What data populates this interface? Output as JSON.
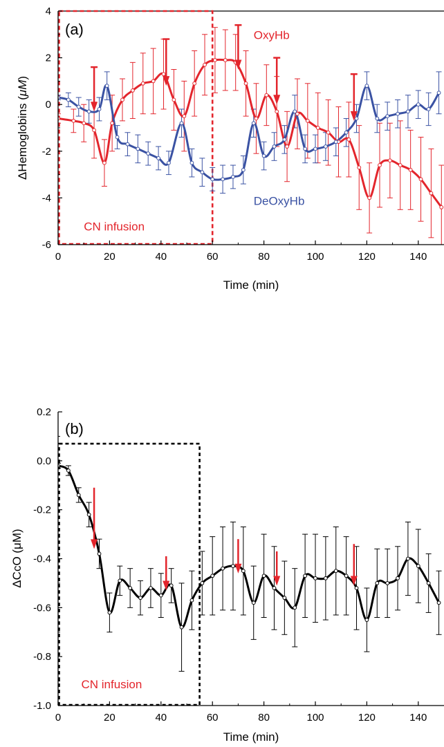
{
  "colors": {
    "oxy": "#e3252c",
    "deoxy": "#3a52a3",
    "cco": "#000000",
    "arrow": "#e3252c",
    "box_a": "#e3252c",
    "box_b": "#000000"
  },
  "chart_data": [
    {
      "type": "line",
      "panel_label": "(a)",
      "xlabel": "Time (min)",
      "ylabel_prefix": "ΔHemoglobins (",
      "ylabel_unit": "μM",
      "ylabel_suffix": ")",
      "xlim": [
        0,
        150
      ],
      "ylim": [
        -6,
        4
      ],
      "xticks": [
        "0",
        "20",
        "40",
        "60",
        "80",
        "100",
        "120",
        "140"
      ],
      "xtick_values": [
        0,
        20,
        40,
        60,
        80,
        100,
        120,
        140
      ],
      "yticks": [
        "-6",
        "-4",
        "-2",
        "0",
        "2",
        "4"
      ],
      "ytick_values": [
        -6,
        -4,
        -2,
        0,
        2,
        4
      ],
      "box_label": "CN infusion",
      "box_x": [
        0,
        60
      ],
      "box_y": [
        -6,
        4
      ],
      "series": [
        {
          "name": "OxyHb",
          "color_key": "oxy",
          "label_at": [
            76,
            2.8
          ],
          "points": [
            {
              "x": 0,
              "y": -0.6,
              "e": 0.2
            },
            {
              "x": 6,
              "y": -0.7,
              "e": 0.5
            },
            {
              "x": 10,
              "y": -0.8,
              "e": 0.8
            },
            {
              "x": 14,
              "y": -1.1,
              "e": 1.2
            },
            {
              "x": 18,
              "y": -2.5,
              "e": 1.0
            },
            {
              "x": 21,
              "y": -0.8,
              "e": 1.2
            },
            {
              "x": 25,
              "y": 0.2,
              "e": 0.9
            },
            {
              "x": 29,
              "y": 0.6,
              "e": 1.2
            },
            {
              "x": 33,
              "y": 0.9,
              "e": 1.3
            },
            {
              "x": 37,
              "y": 1.0,
              "e": 1.4
            },
            {
              "x": 41,
              "y": 1.3,
              "e": 1.5
            },
            {
              "x": 45,
              "y": 0.2,
              "e": 1.3
            },
            {
              "x": 49,
              "y": -0.5,
              "e": 1.5
            },
            {
              "x": 53,
              "y": 0.9,
              "e": 1.4
            },
            {
              "x": 57,
              "y": 1.7,
              "e": 1.3
            },
            {
              "x": 61,
              "y": 1.9,
              "e": 1.4
            },
            {
              "x": 65,
              "y": 1.9,
              "e": 1.3
            },
            {
              "x": 69,
              "y": 1.8,
              "e": 1.2
            },
            {
              "x": 73,
              "y": 0.9,
              "e": 1.4
            },
            {
              "x": 77,
              "y": -0.6,
              "e": 1.5
            },
            {
              "x": 81,
              "y": 0.4,
              "e": 1.3
            },
            {
              "x": 85,
              "y": -0.3,
              "e": 1.5
            },
            {
              "x": 89,
              "y": -1.8,
              "e": 1.5
            },
            {
              "x": 93,
              "y": -0.4,
              "e": 1.5
            },
            {
              "x": 97,
              "y": -0.7,
              "e": 1.6
            },
            {
              "x": 101,
              "y": -1.0,
              "e": 1.5
            },
            {
              "x": 105,
              "y": -1.2,
              "e": 1.4
            },
            {
              "x": 109,
              "y": -1.6,
              "e": 1.5
            },
            {
              "x": 113,
              "y": -1.5,
              "e": 1.6
            },
            {
              "x": 117,
              "y": -2.7,
              "e": 1.8
            },
            {
              "x": 121,
              "y": -4.0,
              "e": 1.5
            },
            {
              "x": 125,
              "y": -2.6,
              "e": 1.8
            },
            {
              "x": 129,
              "y": -2.4,
              "e": 1.6
            },
            {
              "x": 133,
              "y": -2.6,
              "e": 1.9
            },
            {
              "x": 137,
              "y": -2.8,
              "e": 1.7
            },
            {
              "x": 141,
              "y": -3.2,
              "e": 1.8
            },
            {
              "x": 145,
              "y": -3.8,
              "e": 1.9
            },
            {
              "x": 149,
              "y": -4.4,
              "e": 1.8
            }
          ]
        },
        {
          "name": "DeOxyHb",
          "color_key": "deoxy",
          "label_at": [
            76,
            -4.3
          ],
          "points": [
            {
              "x": 0,
              "y": 0.3,
              "e": 0.1
            },
            {
              "x": 4,
              "y": 0.2,
              "e": 0.3
            },
            {
              "x": 8,
              "y": -0.1,
              "e": 0.4
            },
            {
              "x": 12,
              "y": -0.3,
              "e": 0.5
            },
            {
              "x": 16,
              "y": -0.2,
              "e": 0.5
            },
            {
              "x": 19,
              "y": 0.8,
              "e": 0.6
            },
            {
              "x": 23,
              "y": -1.4,
              "e": 0.5
            },
            {
              "x": 27,
              "y": -1.7,
              "e": 0.5
            },
            {
              "x": 31,
              "y": -1.9,
              "e": 0.6
            },
            {
              "x": 35,
              "y": -2.1,
              "e": 0.5
            },
            {
              "x": 39,
              "y": -2.3,
              "e": 0.5
            },
            {
              "x": 43,
              "y": -2.5,
              "e": 0.5
            },
            {
              "x": 48,
              "y": -0.8,
              "e": 0.6
            },
            {
              "x": 52,
              "y": -2.5,
              "e": 0.6
            },
            {
              "x": 56,
              "y": -2.9,
              "e": 0.6
            },
            {
              "x": 60,
              "y": -3.2,
              "e": 0.5
            },
            {
              "x": 64,
              "y": -3.2,
              "e": 0.6
            },
            {
              "x": 68,
              "y": -3.1,
              "e": 0.5
            },
            {
              "x": 72,
              "y": -2.8,
              "e": 0.6
            },
            {
              "x": 76,
              "y": -0.8,
              "e": 0.6
            },
            {
              "x": 80,
              "y": -2.2,
              "e": 0.6
            },
            {
              "x": 84,
              "y": -1.8,
              "e": 0.6
            },
            {
              "x": 88,
              "y": -1.5,
              "e": 0.6
            },
            {
              "x": 92,
              "y": -0.3,
              "e": 0.7
            },
            {
              "x": 96,
              "y": -1.9,
              "e": 0.6
            },
            {
              "x": 100,
              "y": -1.9,
              "e": 0.6
            },
            {
              "x": 104,
              "y": -1.8,
              "e": 0.6
            },
            {
              "x": 108,
              "y": -1.6,
              "e": 0.6
            },
            {
              "x": 112,
              "y": -1.2,
              "e": 0.6
            },
            {
              "x": 116,
              "y": -0.6,
              "e": 0.6
            },
            {
              "x": 120,
              "y": 0.8,
              "e": 0.6
            },
            {
              "x": 124,
              "y": -0.6,
              "e": 0.6
            },
            {
              "x": 128,
              "y": -0.5,
              "e": 0.6
            },
            {
              "x": 132,
              "y": -0.4,
              "e": 0.6
            },
            {
              "x": 136,
              "y": -0.3,
              "e": 0.7
            },
            {
              "x": 140,
              "y": 0.0,
              "e": 0.6
            },
            {
              "x": 144,
              "y": -0.2,
              "e": 0.7
            },
            {
              "x": 148,
              "y": 0.5,
              "e": 0.9
            }
          ]
        }
      ],
      "arrows": [
        {
          "x": 14,
          "y_top": 1.6,
          "y_bottom": -0.3
        },
        {
          "x": 42,
          "y_top": 2.8,
          "y_bottom": 0.8
        },
        {
          "x": 70,
          "y_top": 3.4,
          "y_bottom": 1.5
        },
        {
          "x": 85,
          "y_top": 2.0,
          "y_bottom": 0.0
        },
        {
          "x": 115,
          "y_top": 1.3,
          "y_bottom": -0.7
        }
      ]
    },
    {
      "type": "line",
      "panel_label": "(b)",
      "xlabel": "Time (min)",
      "ylabel_prefix": "ΔCcO (",
      "ylabel_unit": "μM",
      "ylabel_suffix": ")",
      "xlim": [
        0,
        150
      ],
      "ylim": [
        -1.0,
        0.2
      ],
      "xticks": [
        "0",
        "20",
        "40",
        "60",
        "80",
        "100",
        "120",
        "140"
      ],
      "xtick_values": [
        0,
        20,
        40,
        60,
        80,
        100,
        120,
        140
      ],
      "yticks": [
        "-1.0",
        "-0.8",
        "-0.6",
        "-0.4",
        "-0.2",
        "0.0",
        "0.2"
      ],
      "ytick_values": [
        -1.0,
        -0.8,
        -0.6,
        -0.4,
        -0.2,
        0.0,
        0.2
      ],
      "box_label": "CN infusion",
      "box_x": [
        0,
        55
      ],
      "box_y": [
        -1.0,
        0.07
      ],
      "series": [
        {
          "name": "",
          "color_key": "cco",
          "points": [
            {
              "x": 0,
              "y": -0.02,
              "e": 0.01
            },
            {
              "x": 4,
              "y": -0.04,
              "e": 0.02
            },
            {
              "x": 8,
              "y": -0.14,
              "e": 0.03
            },
            {
              "x": 12,
              "y": -0.22,
              "e": 0.05
            },
            {
              "x": 16,
              "y": -0.38,
              "e": 0.06
            },
            {
              "x": 20,
              "y": -0.62,
              "e": 0.08
            },
            {
              "x": 24,
              "y": -0.49,
              "e": 0.06
            },
            {
              "x": 28,
              "y": -0.52,
              "e": 0.08
            },
            {
              "x": 32,
              "y": -0.56,
              "e": 0.07
            },
            {
              "x": 36,
              "y": -0.52,
              "e": 0.08
            },
            {
              "x": 40,
              "y": -0.55,
              "e": 0.09
            },
            {
              "x": 44,
              "y": -0.51,
              "e": 0.07
            },
            {
              "x": 48,
              "y": -0.68,
              "e": 0.18
            },
            {
              "x": 52,
              "y": -0.57,
              "e": 0.12
            },
            {
              "x": 56,
              "y": -0.5,
              "e": 0.13
            },
            {
              "x": 60,
              "y": -0.47,
              "e": 0.16
            },
            {
              "x": 64,
              "y": -0.44,
              "e": 0.17
            },
            {
              "x": 68,
              "y": -0.43,
              "e": 0.18
            },
            {
              "x": 72,
              "y": -0.45,
              "e": 0.18
            },
            {
              "x": 76,
              "y": -0.58,
              "e": 0.15
            },
            {
              "x": 80,
              "y": -0.47,
              "e": 0.17
            },
            {
              "x": 84,
              "y": -0.52,
              "e": 0.17
            },
            {
              "x": 88,
              "y": -0.56,
              "e": 0.15
            },
            {
              "x": 92,
              "y": -0.6,
              "e": 0.16
            },
            {
              "x": 96,
              "y": -0.47,
              "e": 0.17
            },
            {
              "x": 100,
              "y": -0.48,
              "e": 0.18
            },
            {
              "x": 104,
              "y": -0.48,
              "e": 0.17
            },
            {
              "x": 108,
              "y": -0.45,
              "e": 0.18
            },
            {
              "x": 112,
              "y": -0.47,
              "e": 0.16
            },
            {
              "x": 116,
              "y": -0.52,
              "e": 0.17
            },
            {
              "x": 120,
              "y": -0.65,
              "e": 0.13
            },
            {
              "x": 124,
              "y": -0.5,
              "e": 0.14
            },
            {
              "x": 128,
              "y": -0.5,
              "e": 0.14
            },
            {
              "x": 132,
              "y": -0.48,
              "e": 0.13
            },
            {
              "x": 136,
              "y": -0.4,
              "e": 0.15
            },
            {
              "x": 140,
              "y": -0.43,
              "e": 0.15
            },
            {
              "x": 144,
              "y": -0.5,
              "e": 0.12
            },
            {
              "x": 148,
              "y": -0.58,
              "e": 0.13
            }
          ]
        }
      ],
      "arrows": [
        {
          "x": 14,
          "y_top": -0.11,
          "y_bottom": -0.36
        },
        {
          "x": 42,
          "y_top": -0.39,
          "y_bottom": -0.53
        },
        {
          "x": 70,
          "y_top": -0.32,
          "y_bottom": -0.46
        },
        {
          "x": 85,
          "y_top": -0.37,
          "y_bottom": -0.51
        },
        {
          "x": 115,
          "y_top": -0.34,
          "y_bottom": -0.51
        }
      ]
    }
  ]
}
